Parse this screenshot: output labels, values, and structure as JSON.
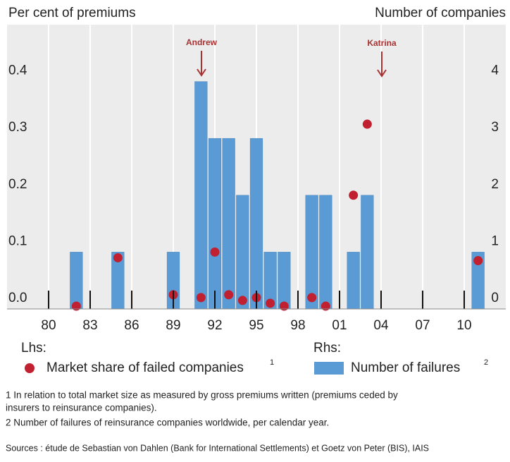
{
  "chart_data": {
    "type": "combo",
    "y_title": "Per cent of premiums",
    "y2_title": "Number of companies",
    "annotations": [
      "Andrew",
      "Katrina"
    ],
    "x": [
      1982,
      1985,
      1989,
      1991,
      1992,
      1993,
      1994,
      1995,
      1996,
      1997,
      1999,
      2000,
      2002,
      2003,
      2011
    ],
    "xlim": [
      1977,
      2013
    ],
    "xticks": [
      {
        "value": 1980,
        "label": "80"
      },
      {
        "value": 1983,
        "label": "83"
      },
      {
        "value": 1986,
        "label": "86"
      },
      {
        "value": 1989,
        "label": "89"
      },
      {
        "value": 1992,
        "label": "92"
      },
      {
        "value": 1995,
        "label": "95"
      },
      {
        "value": 1998,
        "label": "98"
      },
      {
        "value": 2001,
        "label": "01"
      },
      {
        "value": 2004,
        "label": "04"
      },
      {
        "value": 2007,
        "label": "07"
      },
      {
        "value": 2010,
        "label": "10"
      }
    ],
    "ylim": [
      0,
      0.5
    ],
    "yticks": [
      {
        "value": 0,
        "label": "0.0"
      },
      0.1,
      0.2,
      0.3,
      0.4
    ],
    "y2lim": [
      0,
      5
    ],
    "y2ticks": [
      0,
      1,
      2,
      3,
      4
    ],
    "legend_axis_labels": [
      "Lhs:",
      "Rhs:"
    ],
    "series": [
      {
        "name": "Market share of failed companies",
        "footnote_marker": "1",
        "type": "scatter",
        "axis": "y",
        "color": "#c0202f",
        "values": [
          0.005,
          0.09,
          0.025,
          0.02,
          0.1,
          0.025,
          0.015,
          0.02,
          0.01,
          0.005,
          0.02,
          0.005,
          0.2,
          0.325,
          0.085
        ]
      },
      {
        "name": "Number of failures",
        "footnote_marker": "2",
        "type": "bar",
        "axis": "y2",
        "color": "#5b9bd5",
        "values": [
          1,
          1,
          1,
          4,
          3,
          3,
          2,
          3,
          1,
          1,
          2,
          2,
          1,
          2,
          1
        ]
      }
    ]
  },
  "footnotes": [
    "1 In relation to total market size as measured by gross premiums written (premiums ceded by",
    "insurers to reinsurance companies).",
    "2 Number of failures of reinsurance companies worldwide, per calendar year."
  ],
  "sources": "Sources : étude de Sebastian von Dahlen (Bank for International Settlements) et Goetz von Peter (BIS), IAIS"
}
